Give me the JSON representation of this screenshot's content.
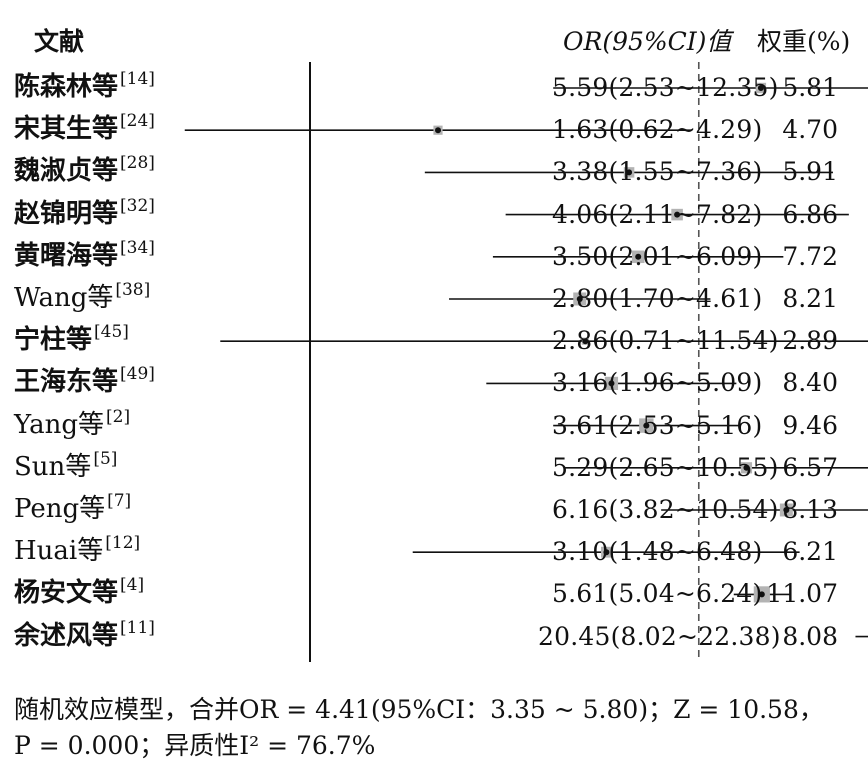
{
  "header": {
    "study_label": "文献",
    "or_label": "OR(95%CI)值",
    "weight_label": "权重(%)"
  },
  "chart_data": {
    "type": "forest",
    "reference_line": 1,
    "pooled_estimate": 4.41,
    "studies": [
      {
        "name": "陈森林等",
        "ref": "[14]",
        "or": 5.59,
        "lo": 2.53,
        "hi": 12.35,
        "ci_text": "5.59(2.53~12.35)",
        "weight": "5.81"
      },
      {
        "name": "宋其生等",
        "ref": "[24]",
        "or": 1.63,
        "lo": 0.62,
        "hi": 4.29,
        "ci_text": "1.63(0.62~4.29)",
        "weight": "4.70"
      },
      {
        "name": "魏淑贞等",
        "ref": "[28]",
        "or": 3.38,
        "lo": 1.55,
        "hi": 7.36,
        "ci_text": "3.38(1.55~7.36)",
        "weight": "5.91"
      },
      {
        "name": "赵锦明等",
        "ref": "[32]",
        "or": 4.06,
        "lo": 2.11,
        "hi": 7.82,
        "ci_text": "4.06(2.11~7.82)",
        "weight": "6.86"
      },
      {
        "name": "黄曙海等",
        "ref": "[34]",
        "or": 3.5,
        "lo": 2.01,
        "hi": 6.09,
        "ci_text": "3.50(2.01~6.09)",
        "weight": "7.72"
      },
      {
        "name": "Wang等",
        "ref": "[38]",
        "or": 2.8,
        "lo": 1.7,
        "hi": 4.61,
        "ci_text": "2.80(1.70~4.61)",
        "weight": "8.21"
      },
      {
        "name": "宁柱等",
        "ref": "[45]",
        "or": 2.86,
        "lo": 0.71,
        "hi": 11.54,
        "ci_text": "2.86(0.71~11.54)",
        "weight": "2.89"
      },
      {
        "name": "王海东等",
        "ref": "[49]",
        "or": 3.16,
        "lo": 1.96,
        "hi": 5.09,
        "ci_text": "3.16(1.96~5.09)",
        "weight": "8.40"
      },
      {
        "name": "Yang等",
        "ref": "[2]",
        "or": 3.61,
        "lo": 2.53,
        "hi": 5.16,
        "ci_text": "3.61(2.53~5.16)",
        "weight": "9.46"
      },
      {
        "name": "Sun等",
        "ref": "[5]",
        "or": 5.29,
        "lo": 2.65,
        "hi": 10.55,
        "ci_text": "5.29(2.65~10.55)",
        "weight": "6.57"
      },
      {
        "name": "Peng等",
        "ref": "[7]",
        "or": 6.16,
        "lo": 3.82,
        "hi": 10.54,
        "ci_text": "6.16(3.82~10.54)",
        "weight": "8.13"
      },
      {
        "name": "Huai等",
        "ref": "[12]",
        "or": 3.1,
        "lo": 1.48,
        "hi": 6.48,
        "ci_text": "3.10(1.48~6.48)",
        "weight": "6.21"
      },
      {
        "name": "杨安文等",
        "ref": "[4]",
        "or": 5.61,
        "lo": 5.04,
        "hi": 6.24,
        "ci_text": "5.61(5.04~6.24)",
        "weight": "11.07"
      },
      {
        "name": "余述风等",
        "ref": "[11]",
        "or": 20.45,
        "lo": 8.02,
        "hi": 22.38,
        "ci_text": "20.45(8.02~22.38)",
        "weight": "8.08"
      }
    ]
  },
  "footer": {
    "line1": "随机效应模型，合并OR = 4.41(95%CI：3.35 ~ 5.80)；Z = 10.58，",
    "line2": "P = 0.000；异质性I² = 76.7%"
  },
  "colors": {
    "marker_box": "#b3b3b3",
    "line": "#111111",
    "dashed_line": "#555555"
  }
}
